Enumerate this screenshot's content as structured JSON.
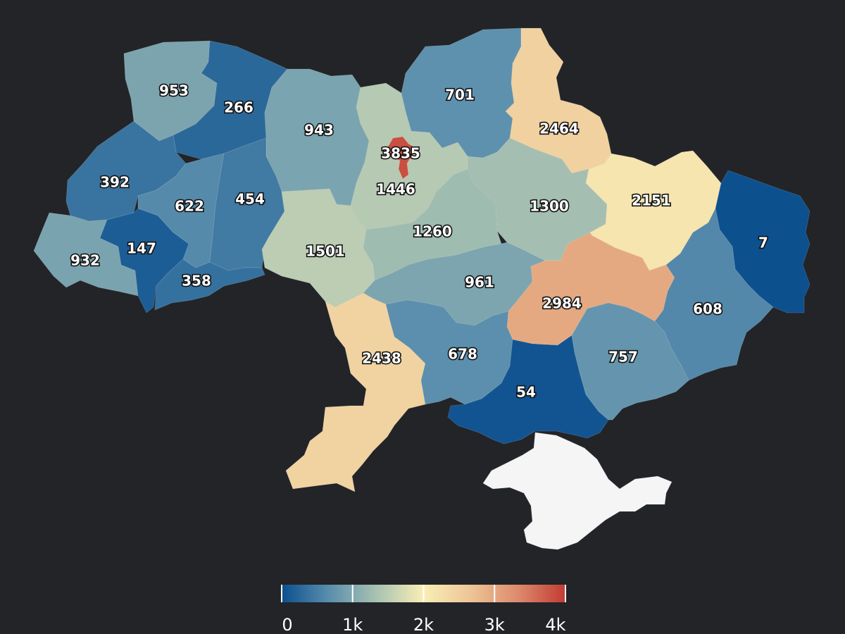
{
  "scale": {
    "min": 0,
    "max": 4000,
    "colors": [
      "#0b4f8e",
      "#5a8ead",
      "#a8c2b2",
      "#f9eeb5",
      "#edc596",
      "#dd8a6c",
      "#c23b33"
    ],
    "ticks": [
      {
        "value": 0,
        "label": "0"
      },
      {
        "value": 1000,
        "label": "1k"
      },
      {
        "value": 2000,
        "label": "2k"
      },
      {
        "value": 3000,
        "label": "3k"
      },
      {
        "value": 4000,
        "label": "4k"
      }
    ]
  },
  "regions": [
    {
      "id": "volyn",
      "value": 953,
      "label": "953"
    },
    {
      "id": "rivne",
      "value": 266,
      "label": "266"
    },
    {
      "id": "zhytomyr",
      "value": 943,
      "label": "943"
    },
    {
      "id": "kyiv-oblast",
      "value": 1446,
      "label": "1446"
    },
    {
      "id": "kyiv-city",
      "value": 3835,
      "label": "3835"
    },
    {
      "id": "chernihiv",
      "value": 701,
      "label": "701"
    },
    {
      "id": "sumy",
      "value": 2464,
      "label": "2464"
    },
    {
      "id": "lviv",
      "value": 392,
      "label": "392"
    },
    {
      "id": "ternopil",
      "value": 622,
      "label": "622"
    },
    {
      "id": "khmelnytskyi",
      "value": 454,
      "label": "454"
    },
    {
      "id": "vinnytsia",
      "value": 1501,
      "label": "1501"
    },
    {
      "id": "cherkasy",
      "value": 1260,
      "label": "1260"
    },
    {
      "id": "poltava",
      "value": 1300,
      "label": "1300"
    },
    {
      "id": "kharkiv",
      "value": 2151,
      "label": "2151"
    },
    {
      "id": "luhansk",
      "value": 7,
      "label": "7"
    },
    {
      "id": "zakarpattia",
      "value": 932,
      "label": "932"
    },
    {
      "id": "ivano-frankivsk",
      "value": 147,
      "label": "147"
    },
    {
      "id": "chernivtsi",
      "value": 358,
      "label": "358"
    },
    {
      "id": "kirovohrad",
      "value": 961,
      "label": "961"
    },
    {
      "id": "dnipropetrovsk",
      "value": 2984,
      "label": "2984"
    },
    {
      "id": "donetsk",
      "value": 608,
      "label": "608"
    },
    {
      "id": "odesa",
      "value": 2438,
      "label": "2438"
    },
    {
      "id": "mykolaiv",
      "value": 678,
      "label": "678"
    },
    {
      "id": "kherson",
      "value": 54,
      "label": "54"
    },
    {
      "id": "zaporizhzhia",
      "value": 757,
      "label": "757"
    },
    {
      "id": "crimea",
      "value": null,
      "label": ""
    }
  ],
  "no_data_color": "#f5f5f5"
}
